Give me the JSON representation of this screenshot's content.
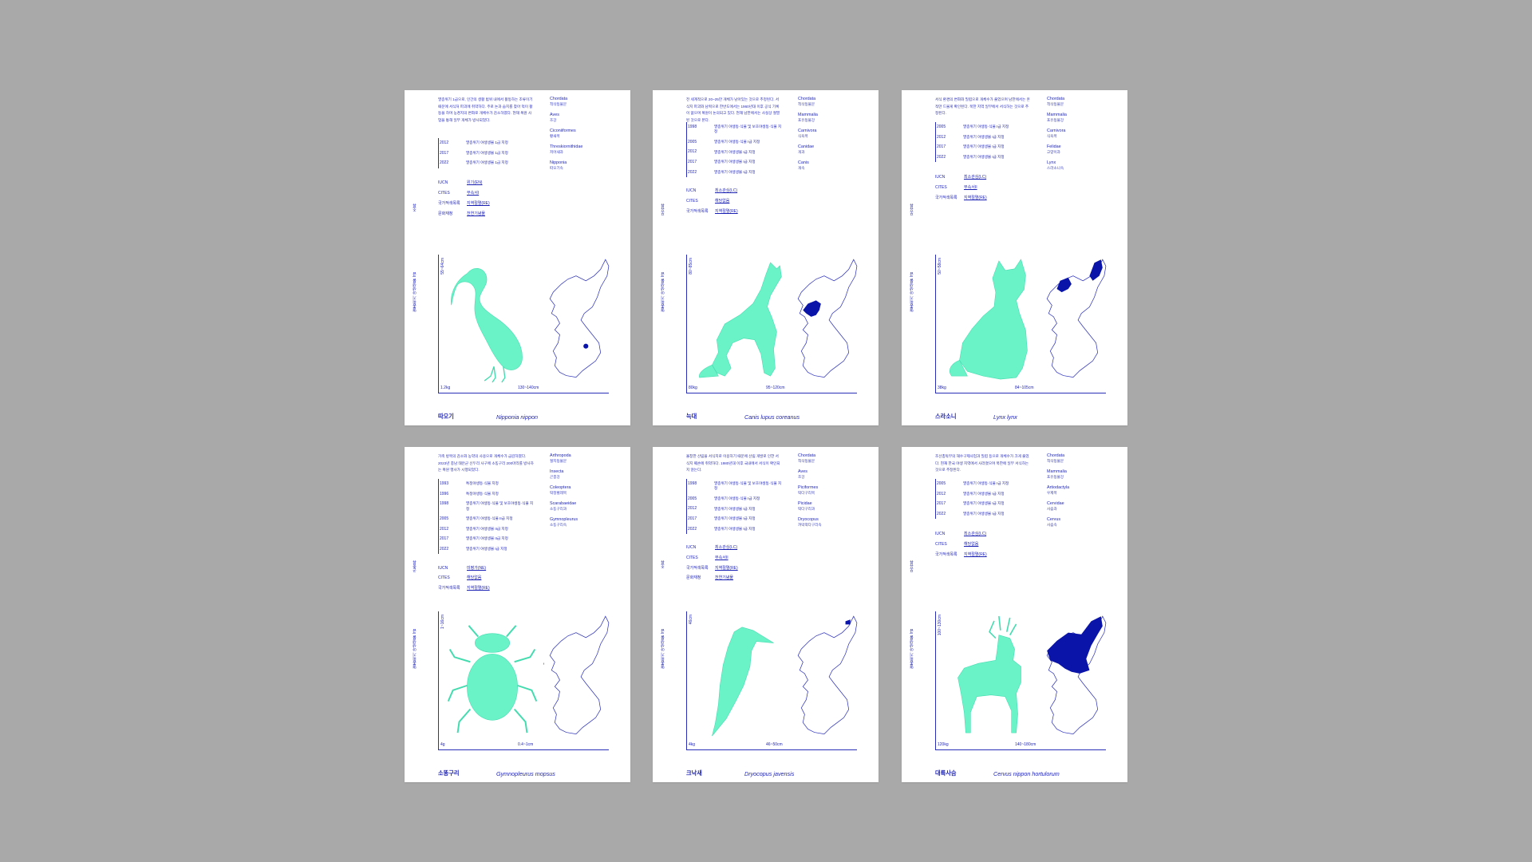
{
  "colors": {
    "background": "#a9a9a9",
    "card": "#ffffff",
    "ink": "#1a1fb4",
    "mint": "#4ff0bf",
    "map_fill": "#0a14a8"
  },
  "status_labels": {
    "iucn": "IUCN",
    "cites": "CITES",
    "redlist": "국가적색목록",
    "heritage": "문화재청"
  },
  "cards": [
    {
      "animal": "ibis",
      "desc": "멸종위기 1급으로, 인간의 생활 범위 내에서 활동하는 조류이기 때문에 서식처 파괴에 취약하다. 주로 논과 습지를 찾아 먹이 활동을 하며 농경지의 변화로 개체수가 감소하였다. 현재 복원 사업을 통해 일부 개체가 방사되었다.",
      "taxa": [
        {
          "latin": "Chordata",
          "ko": "척삭동물문"
        },
        {
          "latin": "Aves",
          "ko": "조강"
        },
        {
          "latin": "Ciconiiformes",
          "ko": "황새목"
        },
        {
          "latin": "Threskiornithidae",
          "ko": "저어새과"
        },
        {
          "latin": "Nipponia",
          "ko": "따오기속"
        }
      ],
      "timeline": [
        {
          "year": "2012",
          "text": "멸종위기 야생생물 1급 지정"
        },
        {
          "year": "2017",
          "text": "멸종위기 야생생물 1급 지정"
        },
        {
          "year": "2022",
          "text": "멸종위기 야생생물 1급 지정"
        }
      ],
      "status": {
        "iucn": "위기(EN)",
        "cites": "부속서I",
        "redlist": "지역절멸(RE)",
        "heritage": "천연기념물"
      },
      "vtag": "조류",
      "vtag_long": "멸종위기 야생생물 I급",
      "size": "55~64cm",
      "weight": "1.2kg",
      "length": "130~140cm",
      "name_ko": "따오기",
      "name_sci": "Nipponia nippon"
    },
    {
      "animal": "wolf",
      "desc": "전 세계적으로 20~25만 개체가 남아있는 것으로 추정된다. 서식지 파괴와 남획으로 한반도에서는 1960년대 이후 공식 기록이 없으며 복원이 논의되고 있다. 현재 남한에서는 사실상 절멸된 것으로 본다.",
      "taxa": [
        {
          "latin": "Chordata",
          "ko": "척삭동물문"
        },
        {
          "latin": "Mammalia",
          "ko": "포유동물강"
        },
        {
          "latin": "Carnivora",
          "ko": "식육목"
        },
        {
          "latin": "Canidae",
          "ko": "개과"
        },
        {
          "latin": "Canis",
          "ko": "개속"
        }
      ],
      "timeline": [
        {
          "year": "1998",
          "text": "멸종위기 야생동·식물 및 보호야생동·식물 지정"
        },
        {
          "year": "2005",
          "text": "멸종위기 야생동·식물 I급 지정"
        },
        {
          "year": "2012",
          "text": "멸종위기 야생생물 I급 지정"
        },
        {
          "year": "2017",
          "text": "멸종위기 야생생물 I급 지정"
        },
        {
          "year": "2022",
          "text": "멸종위기 야생생물 I급 지정"
        }
      ],
      "status": {
        "iucn": "최소관심(LC)",
        "cites": "해당없음",
        "redlist": "지역절멸(RE)",
        "heritage": ""
      },
      "vtag": "포유류",
      "vtag_long": "멸종위기 야생생물 I급",
      "size": "80~85cm",
      "weight": "80kg",
      "length": "95~120cm",
      "name_ko": "늑대",
      "name_sci": "Canis lupus coreanus"
    },
    {
      "animal": "lynx",
      "desc": "서식 환경의 변화와 밀렵으로 개체수가 줄었으며 남한에서는 흔적만 드물게 확인된다. 북한 지역 일부에서 서식하는 것으로 추정된다.",
      "taxa": [
        {
          "latin": "Chordata",
          "ko": "척삭동물문"
        },
        {
          "latin": "Mammalia",
          "ko": "포유동물강"
        },
        {
          "latin": "Carnivora",
          "ko": "식육목"
        },
        {
          "latin": "Felidae",
          "ko": "고양이과"
        },
        {
          "latin": "Lynx",
          "ko": "스라소니속"
        }
      ],
      "timeline": [
        {
          "year": "2005",
          "text": "멸종위기 야생동·식물 I급 지정"
        },
        {
          "year": "2012",
          "text": "멸종위기 야생생물 I급 지정"
        },
        {
          "year": "2017",
          "text": "멸종위기 야생생물 I급 지정"
        },
        {
          "year": "2022",
          "text": "멸종위기 야생생물 I급 지정"
        }
      ],
      "status": {
        "iucn": "최소관심(LC)",
        "cites": "부속서II",
        "redlist": "지역절멸(RE)",
        "heritage": ""
      },
      "vtag": "포유류",
      "vtag_long": "멸종위기 야생생물 I급",
      "size": "50~58cm",
      "weight": "38kg",
      "length": "84~105cm",
      "name_ko": "스라소니",
      "name_sci": "Lynx lynx"
    },
    {
      "animal": "beetle",
      "desc": "가축 방목의 감소와 농약의 사용으로 개체수가 급감하였다. 2023년 충남 태안군 신두리 사구에 소똥구리 200마리를 방사하는 복원 행사가 시행되었다.",
      "taxa": [
        {
          "latin": "Arthropoda",
          "ko": "절지동물문"
        },
        {
          "latin": "Insecta",
          "ko": "곤충강"
        },
        {
          "latin": "Coleoptera",
          "ko": "딱정벌레목"
        },
        {
          "latin": "Scarabaeidae",
          "ko": "소똥구리과"
        },
        {
          "latin": "Gymnopleurus",
          "ko": "소똥구리속"
        }
      ],
      "timeline": [
        {
          "year": "1993",
          "text": "특정야생동·식물 지정"
        },
        {
          "year": "1996",
          "text": "특정야생동·식물 지정"
        },
        {
          "year": "1998",
          "text": "멸종위기 야생동·식물 및 보호야생동·식물 지정"
        },
        {
          "year": "2005",
          "text": "멸종위기 야생동·식물 II급 지정"
        },
        {
          "year": "2012",
          "text": "멸종위기 야생생물 II급 지정"
        },
        {
          "year": "2017",
          "text": "멸종위기 야생생물 II급 지정"
        },
        {
          "year": "2022",
          "text": "멸종위기 야생생물 I급 지정"
        }
      ],
      "status": {
        "iucn": "미평가(NE)",
        "cites": "해당없음",
        "redlist": "지역절멸(RE)",
        "heritage": ""
      },
      "vtag": "곤충류",
      "vtag_long": "멸종위기 야생생물 I급",
      "size": "1~16cm",
      "weight": "4g",
      "length": "0.4~1cm",
      "name_ko": "소똥구리",
      "name_sci": "Gymnopleurus mopsus"
    },
    {
      "animal": "woodpecker",
      "desc": "울창한 산림을 서식지로 이용하기 때문에 산림 개발로 인한 서식지 훼손에 취약하다. 1980년대 이후 국내에서 서식이 확인되지 않는다.",
      "taxa": [
        {
          "latin": "Chordata",
          "ko": "척삭동물문"
        },
        {
          "latin": "Aves",
          "ko": "조강"
        },
        {
          "latin": "Piciformes",
          "ko": "딱다구리목"
        },
        {
          "latin": "Picidae",
          "ko": "딱다구리과"
        },
        {
          "latin": "Dryocopus",
          "ko": "까막딱다구리속"
        }
      ],
      "timeline": [
        {
          "year": "1998",
          "text": "멸종위기 야생동·식물 및 보호야생동·식물 지정"
        },
        {
          "year": "2005",
          "text": "멸종위기 야생동·식물 I급 지정"
        },
        {
          "year": "2012",
          "text": "멸종위기 야생생물 I급 지정"
        },
        {
          "year": "2017",
          "text": "멸종위기 야생생물 I급 지정"
        },
        {
          "year": "2022",
          "text": "멸종위기 야생생물 I급 지정"
        }
      ],
      "status": {
        "iucn": "최소관심(LC)",
        "cites": "부속서II",
        "redlist": "지역절멸(RE)",
        "heritage": "천연기념물"
      },
      "vtag": "조류",
      "vtag_long": "멸종위기 야생생물 I급",
      "size": "46cm",
      "weight": "4kg",
      "length": "46~50cm",
      "name_ko": "크낙새",
      "name_sci": "Dryocopus javensis"
    },
    {
      "animal": "deer",
      "desc": "조선총독부의 해수구제사업과 밀렵 등으로 개체수가 크게 줄었다. 현재 한국 야생 지역에서 사라졌으며 북한에 일부 서식하는 것으로 추정된다.",
      "taxa": [
        {
          "latin": "Chordata",
          "ko": "척삭동물문"
        },
        {
          "latin": "Mammalia",
          "ko": "포유동물강"
        },
        {
          "latin": "Artiodactyla",
          "ko": "우제목"
        },
        {
          "latin": "Cervidae",
          "ko": "사슴과"
        },
        {
          "latin": "Cervus",
          "ko": "사슴속"
        }
      ],
      "timeline": [
        {
          "year": "2005",
          "text": "멸종위기 야생동·식물 I급 지정"
        },
        {
          "year": "2012",
          "text": "멸종위기 야생생물 I급 지정"
        },
        {
          "year": "2017",
          "text": "멸종위기 야생생물 I급 지정"
        },
        {
          "year": "2022",
          "text": "멸종위기 야생생물 I급 지정"
        }
      ],
      "status": {
        "iucn": "최소관심(LC)",
        "cites": "해당없음",
        "redlist": "지역절멸(RE)",
        "heritage": ""
      },
      "vtag": "포유류",
      "vtag_long": "멸종위기 야생생물 I급",
      "size": "100~130cm",
      "weight": "120kg",
      "length": "140~180cm",
      "name_ko": "대륙사슴",
      "name_sci": "Cervus nippon hortulorum"
    }
  ]
}
